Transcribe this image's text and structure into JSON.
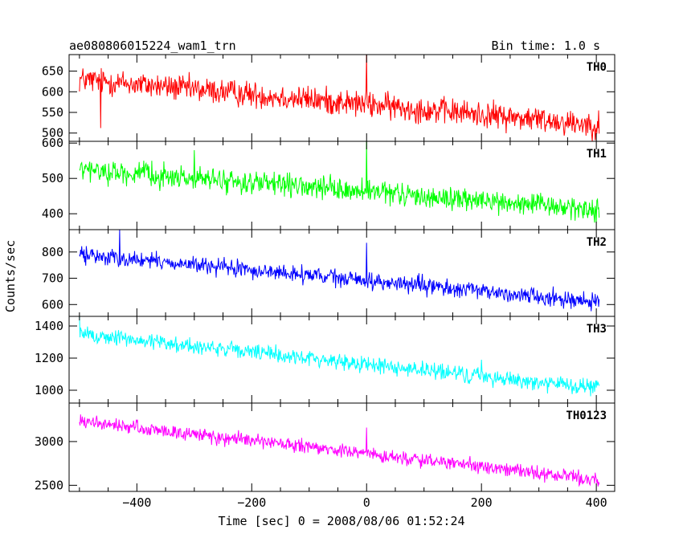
{
  "header": {
    "title": "ae080806015224_wam1_trn",
    "bin_time": "Bin time: 1.0 s"
  },
  "axes": {
    "xlabel": "Time [sec] 0 = 2008/08/06 01:52:24",
    "ylabel": "Counts/sec"
  },
  "chart_data": {
    "type": "line",
    "x_range": [
      -500,
      405
    ],
    "xlim": [
      -518,
      432
    ],
    "x_ticks": [
      -400,
      -200,
      0,
      200,
      400
    ],
    "bin_time_s": 1.0,
    "grid": false,
    "series": [
      {
        "name": "TH0",
        "color": "#ff0000",
        "ylim": [
          480,
          690
        ],
        "yticks": [
          500,
          550,
          600,
          650
        ],
        "start_level": 630,
        "end_level": 520,
        "noise": 28,
        "spikes": [
          {
            "x": 0,
            "value": 690
          },
          {
            "x": -463,
            "value": 512
          }
        ]
      },
      {
        "name": "TH1",
        "color": "#00ff00",
        "ylim": [
          355,
          605
        ],
        "yticks": [
          400,
          500,
          600
        ],
        "start_level": 525,
        "end_level": 410,
        "noise": 28,
        "spikes": [
          {
            "x": 0,
            "value": 605
          },
          {
            "x": -300,
            "value": 580
          }
        ]
      },
      {
        "name": "TH2",
        "color": "#0000ff",
        "ylim": [
          555,
          885
        ],
        "yticks": [
          600,
          700,
          800
        ],
        "start_level": 790,
        "end_level": 610,
        "noise": 28,
        "spikes": [
          {
            "x": 0,
            "value": 835
          },
          {
            "x": -430,
            "value": 885
          }
        ]
      },
      {
        "name": "TH3",
        "color": "#00ffff",
        "ylim": [
          920,
          1460
        ],
        "yticks": [
          1000,
          1200,
          1400
        ],
        "start_level": 1350,
        "end_level": 1010,
        "noise": 45,
        "spikes": [
          {
            "x": 200,
            "value": 1190
          },
          {
            "x": -500,
            "value": 1460
          }
        ]
      },
      {
        "name": "TH0123",
        "color": "#ff00ff",
        "ylim": [
          2430,
          3440
        ],
        "yticks": [
          2500,
          3000
        ],
        "start_level": 3230,
        "end_level": 2560,
        "noise": 70,
        "spikes": [
          {
            "x": 0,
            "value": 3160
          }
        ]
      }
    ]
  }
}
